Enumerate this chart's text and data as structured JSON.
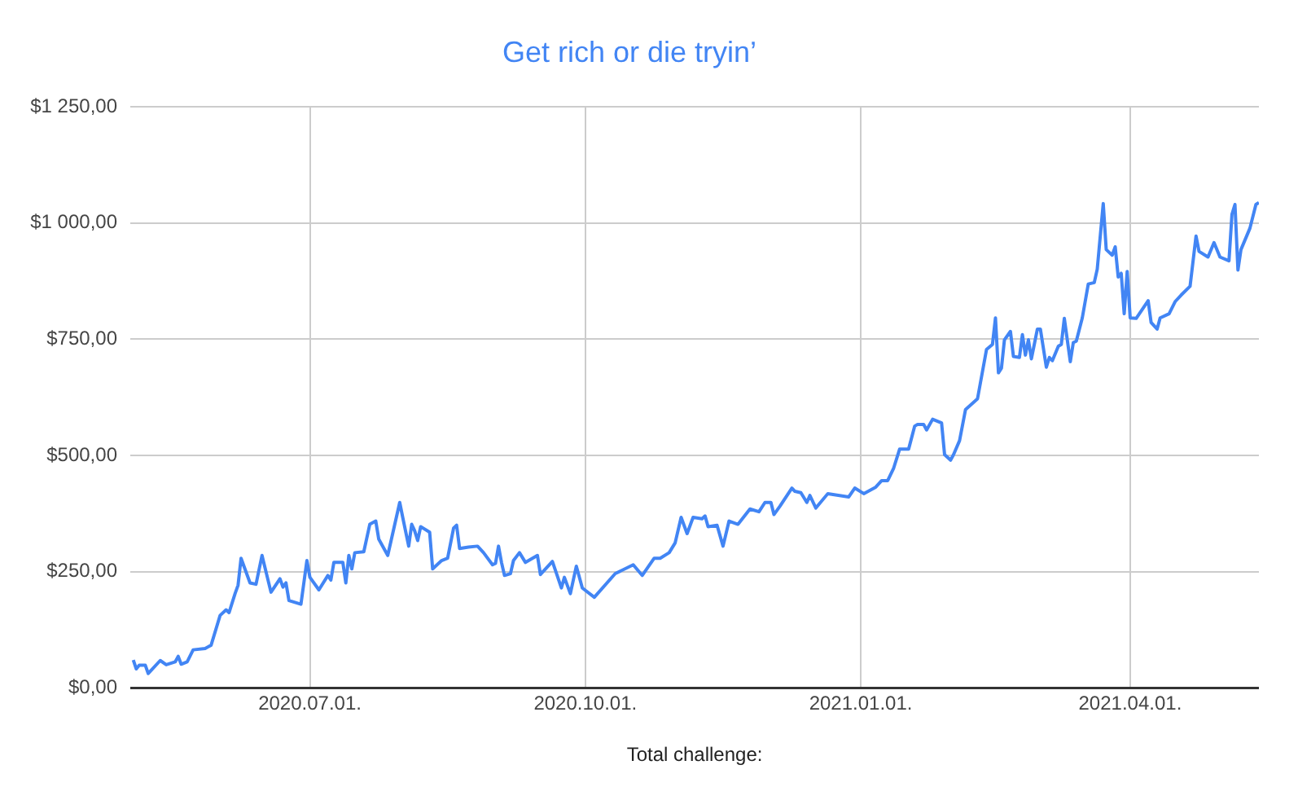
{
  "chart_data": {
    "type": "line",
    "title": "Get rich or die tryin’",
    "xlabel": "Total challenge:",
    "x": [
      "2020-05-03",
      "2020-05-04",
      "2020-05-05",
      "2020-05-07",
      "2020-05-08",
      "2020-05-12",
      "2020-05-14",
      "2020-05-17",
      "2020-05-18",
      "2020-05-19",
      "2020-05-21",
      "2020-05-23",
      "2020-05-27",
      "2020-05-29",
      "2020-06-01",
      "2020-06-03",
      "2020-06-04",
      "2020-06-06",
      "2020-06-07",
      "2020-06-08",
      "2020-06-11",
      "2020-06-13",
      "2020-06-15",
      "2020-06-18",
      "2020-06-21",
      "2020-06-22",
      "2020-06-23",
      "2020-06-24",
      "2020-06-28",
      "2020-06-30",
      "2020-07-01",
      "2020-07-04",
      "2020-07-07",
      "2020-07-08",
      "2020-07-09",
      "2020-07-12",
      "2020-07-13",
      "2020-07-14",
      "2020-07-15",
      "2020-07-16",
      "2020-07-19",
      "2020-07-21",
      "2020-07-23",
      "2020-07-24",
      "2020-07-27",
      "2020-07-31",
      "2020-08-01",
      "2020-08-03",
      "2020-08-04",
      "2020-08-05",
      "2020-08-06",
      "2020-08-07",
      "2020-08-10",
      "2020-08-11",
      "2020-08-14",
      "2020-08-16",
      "2020-08-18",
      "2020-08-19",
      "2020-08-20",
      "2020-08-23",
      "2020-08-26",
      "2020-08-28",
      "2020-08-31",
      "2020-09-01",
      "2020-09-02",
      "2020-09-03",
      "2020-09-04",
      "2020-09-06",
      "2020-09-07",
      "2020-09-09",
      "2020-09-11",
      "2020-09-15",
      "2020-09-16",
      "2020-09-20",
      "2020-09-23",
      "2020-09-24",
      "2020-09-26",
      "2020-09-28",
      "2020-09-30",
      "2020-10-04",
      "2020-10-11",
      "2020-10-17",
      "2020-10-20",
      "2020-10-24",
      "2020-10-26",
      "2020-10-29",
      "2020-10-31",
      "2020-11-02",
      "2020-11-04",
      "2020-11-06",
      "2020-11-09",
      "2020-11-10",
      "2020-11-11",
      "2020-11-14",
      "2020-11-16",
      "2020-11-18",
      "2020-11-21",
      "2020-11-25",
      "2020-11-28",
      "2020-11-30",
      "2020-12-02",
      "2020-12-03",
      "2020-12-05",
      "2020-12-09",
      "2020-12-10",
      "2020-12-12",
      "2020-12-14",
      "2020-12-15",
      "2020-12-17",
      "2020-12-21",
      "2020-12-28",
      "2020-12-30",
      "2021-01-02",
      "2021-01-06",
      "2021-01-08",
      "2021-01-10",
      "2021-01-12",
      "2021-01-14",
      "2021-01-17",
      "2021-01-19",
      "2021-01-20",
      "2021-01-22",
      "2021-01-23",
      "2021-01-25",
      "2021-01-28",
      "2021-01-29",
      "2021-01-31",
      "2021-02-01",
      "2021-02-03",
      "2021-02-05",
      "2021-02-09",
      "2021-02-12",
      "2021-02-14",
      "2021-02-15",
      "2021-02-16",
      "2021-02-17",
      "2021-02-18",
      "2021-02-20",
      "2021-02-21",
      "2021-02-23",
      "2021-02-24",
      "2021-02-25",
      "2021-02-26",
      "2021-02-27",
      "2021-03-01",
      "2021-03-02",
      "2021-03-04",
      "2021-03-05",
      "2021-03-06",
      "2021-03-08",
      "2021-03-09",
      "2021-03-10",
      "2021-03-12",
      "2021-03-13",
      "2021-03-14",
      "2021-03-16",
      "2021-03-18",
      "2021-03-20",
      "2021-03-21",
      "2021-03-23",
      "2021-03-24",
      "2021-03-26",
      "2021-03-27",
      "2021-03-28",
      "2021-03-29",
      "2021-03-30",
      "2021-03-31",
      "2021-04-01",
      "2021-04-03",
      "2021-04-07",
      "2021-04-08",
      "2021-04-10",
      "2021-04-11",
      "2021-04-14",
      "2021-04-16",
      "2021-04-18",
      "2021-04-21",
      "2021-04-23",
      "2021-04-24",
      "2021-04-27",
      "2021-04-29",
      "2021-05-01",
      "2021-05-04",
      "2021-05-05",
      "2021-05-06",
      "2021-05-07",
      "2021-05-08",
      "2021-05-11",
      "2021-05-13",
      "2021-05-14"
    ],
    "series": [
      {
        "color": "#4285f4",
        "values": [
          60,
          41,
          49,
          49,
          31,
          59,
          50,
          56,
          68,
          51,
          56,
          82,
          85,
          92,
          156,
          168,
          162,
          203,
          221,
          279,
          226,
          223,
          285,
          206,
          235,
          217,
          226,
          188,
          180,
          274,
          238,
          211,
          242,
          232,
          270,
          270,
          226,
          285,
          256,
          291,
          293,
          352,
          359,
          320,
          285,
          399,
          367,
          305,
          352,
          338,
          317,
          347,
          335,
          256,
          274,
          279,
          344,
          350,
          300,
          303,
          305,
          291,
          265,
          268,
          305,
          270,
          242,
          246,
          274,
          291,
          270,
          285,
          244,
          272,
          215,
          238,
          203,
          262,
          215,
          195,
          246,
          265,
          242,
          279,
          279,
          291,
          312,
          367,
          332,
          367,
          364,
          370,
          347,
          350,
          305,
          359,
          352,
          385,
          379,
          399,
          399,
          373,
          391,
          430,
          423,
          420,
          399,
          414,
          387,
          418,
          411,
          430,
          418,
          432,
          446,
          446,
          473,
          514,
          514,
          563,
          567,
          567,
          555,
          578,
          570,
          502,
          490,
          502,
          532,
          599,
          622,
          728,
          739,
          796,
          678,
          688,
          749,
          767,
          713,
          711,
          760,
          716,
          749,
          708,
          772,
          772,
          690,
          711,
          704,
          735,
          739,
          795,
          702,
          743,
          746,
          796,
          869,
          872,
          901,
          1042,
          943,
          931,
          949,
          884,
          892,
          805,
          896,
          796,
          795,
          833,
          786,
          772,
          796,
          805,
          831,
          845,
          864,
          972,
          939,
          927,
          958,
          927,
          919,
          1019,
          1040,
          899,
          943,
          989,
          1040,
          1044
        ]
      }
    ],
    "xlim": [
      "2020-05-02",
      "2021-05-14"
    ],
    "xticks": [
      {
        "value": "2020-07-01",
        "label": "2020.07.01."
      },
      {
        "value": "2020-10-01",
        "label": "2020.10.01."
      },
      {
        "value": "2021-01-01",
        "label": "2021.01.01."
      },
      {
        "value": "2021-04-01",
        "label": "2021.04.01."
      }
    ],
    "ylim": [
      0,
      1250
    ],
    "yticks": [
      {
        "value": 0,
        "label": "$0,00"
      },
      {
        "value": 250,
        "label": "$250,00"
      },
      {
        "value": 500,
        "label": "$500,00"
      },
      {
        "value": 750,
        "label": "$750,00"
      },
      {
        "value": 1000,
        "label": "$1 000,00"
      },
      {
        "value": 1250,
        "label": "$1 250,00"
      }
    ],
    "grid": true,
    "legend": false,
    "marker": "none",
    "line_style": "solid"
  }
}
